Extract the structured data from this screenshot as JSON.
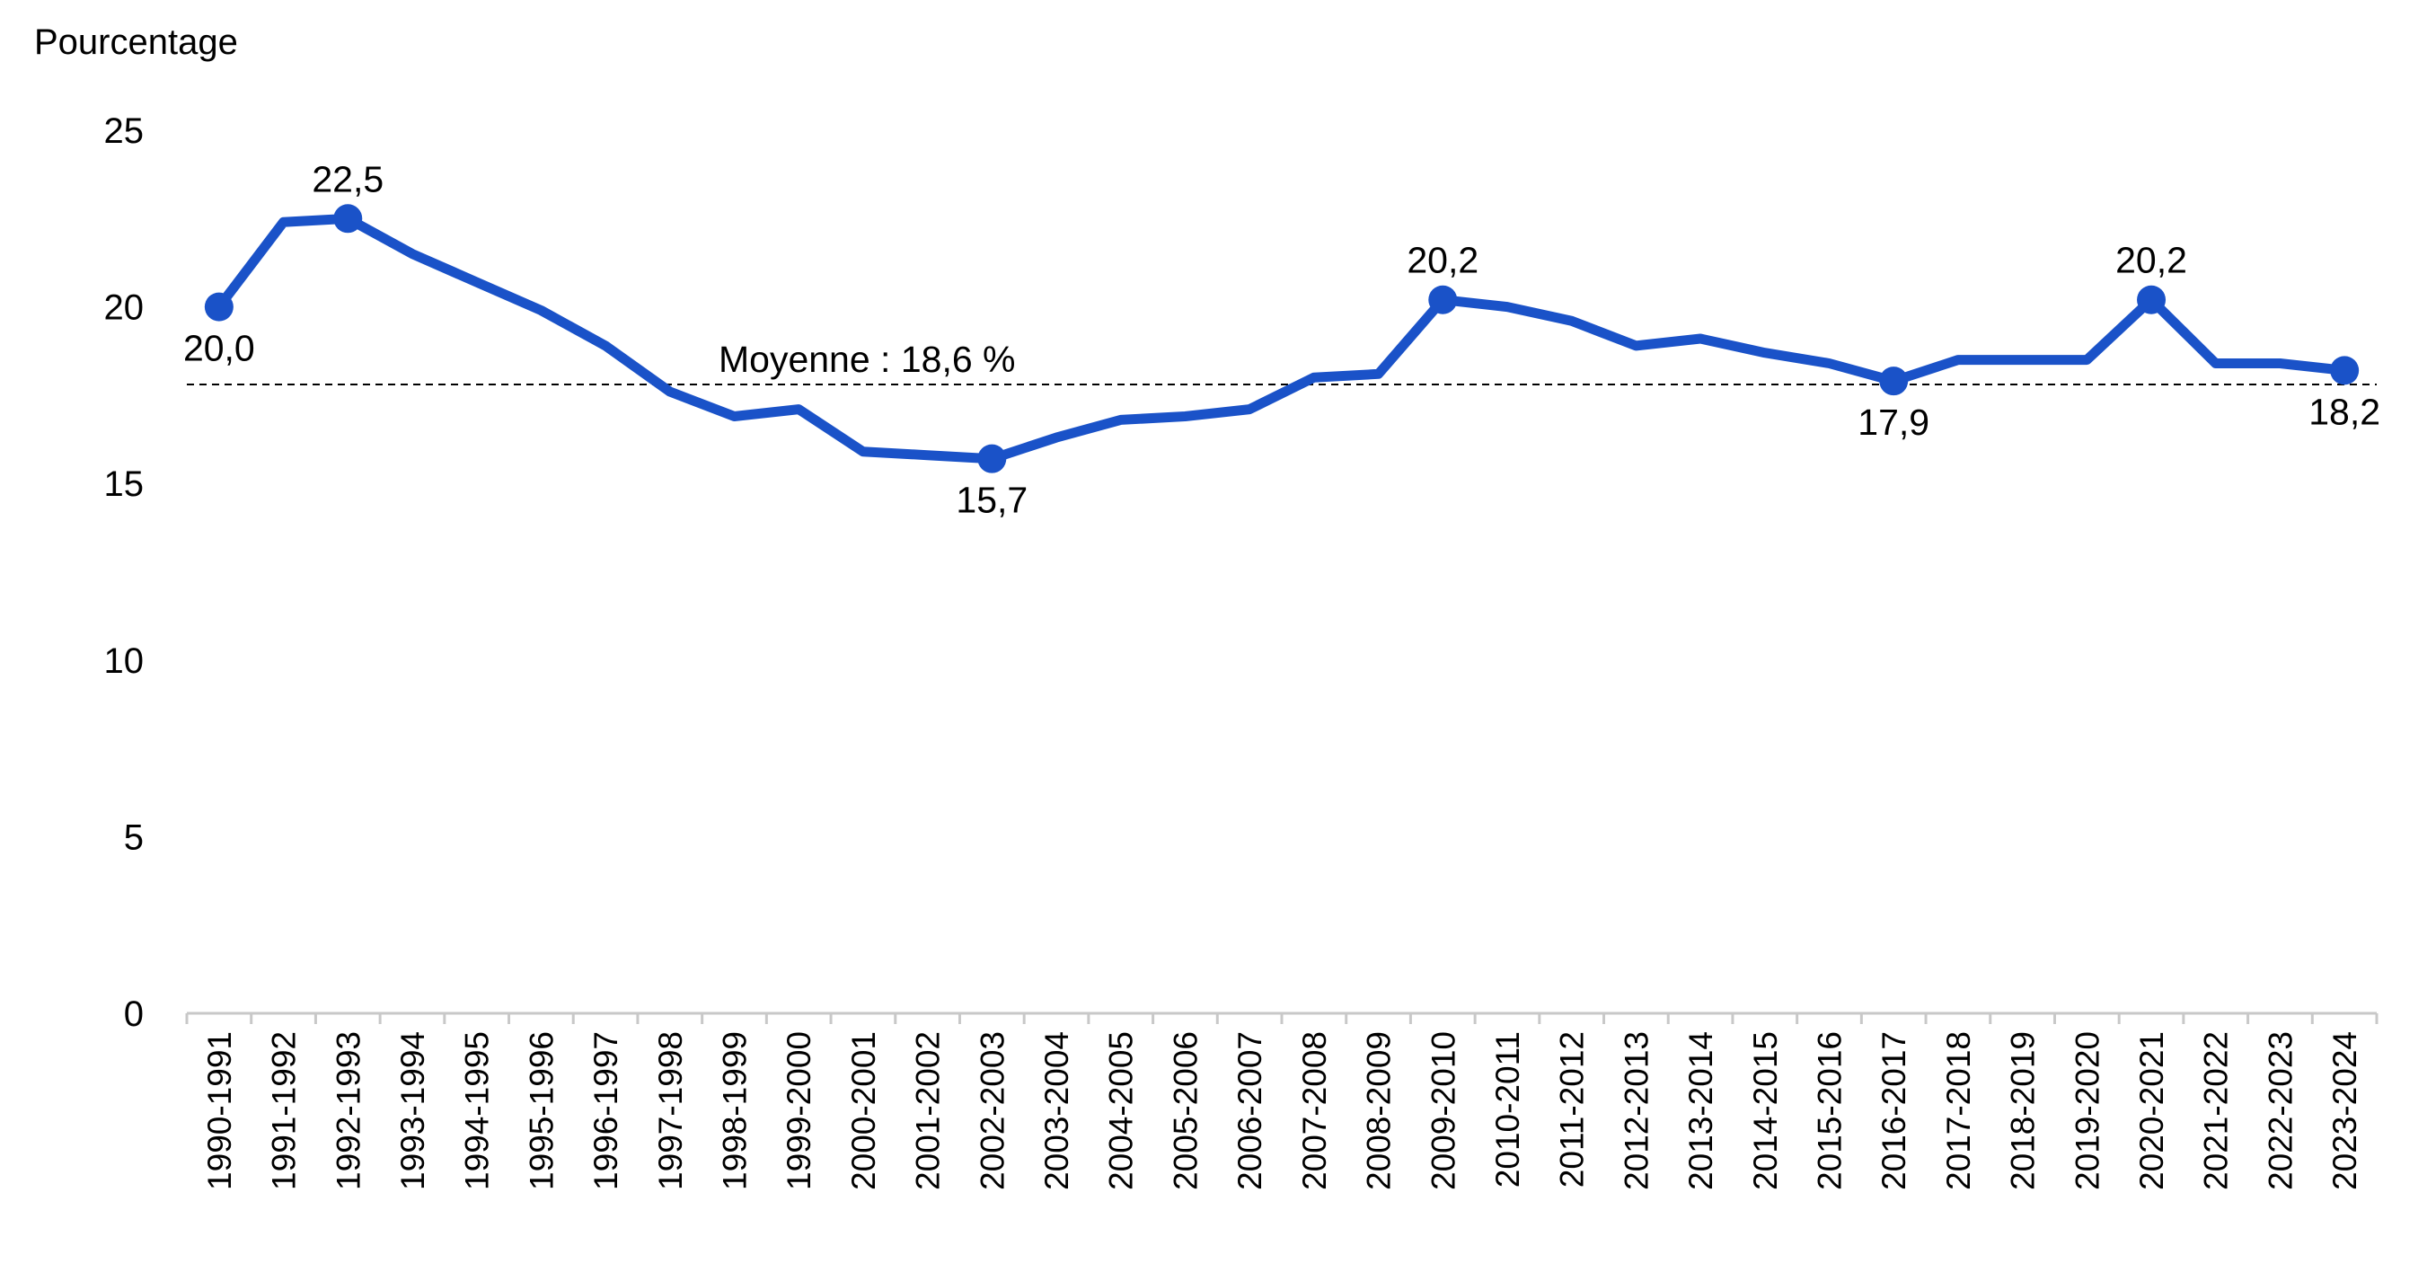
{
  "chart_data": {
    "type": "line",
    "ylabel": "Pourcentage",
    "ylim": [
      0,
      25
    ],
    "yticks": [
      "0",
      "5",
      "10",
      "15",
      "20",
      "25"
    ],
    "grid": false,
    "categories": [
      "1990-1991",
      "1991-1992",
      "1992-1993",
      "1993-1994",
      "1994-1995",
      "1995-1996",
      "1996-1997",
      "1997-1998",
      "1998-1999",
      "1999-2000",
      "2000-2001",
      "2001-2002",
      "2002-2003",
      "2003-2004",
      "2004-2005",
      "2005-2006",
      "2006-2007",
      "2007-2008",
      "2008-2009",
      "2009-2010",
      "2010-2011",
      "2011-2012",
      "2012-2013",
      "2013-2014",
      "2014-2015",
      "2015-2016",
      "2016-2017",
      "2017-2018",
      "2018-2019",
      "2019-2020",
      "2020-2021",
      "2021-2022",
      "2022-2023",
      "2023-2024"
    ],
    "series": [
      {
        "color": "#1a52c8",
        "values": [
          20.0,
          22.4,
          22.5,
          21.5,
          20.7,
          19.9,
          18.9,
          17.6,
          16.9,
          17.1,
          15.9,
          15.8,
          15.7,
          16.3,
          16.8,
          16.9,
          17.1,
          18.0,
          18.1,
          20.2,
          20.0,
          19.6,
          18.9,
          19.1,
          18.7,
          18.4,
          17.9,
          18.5,
          18.5,
          18.5,
          20.2,
          18.4,
          18.4,
          18.2
        ]
      }
    ],
    "average": {
      "value": 18.6,
      "label": "Moyenne : 18,6 %"
    },
    "annotations": [
      {
        "index": 0,
        "label": "20,0",
        "pos": "below"
      },
      {
        "index": 2,
        "label": "22,5",
        "pos": "above"
      },
      {
        "index": 12,
        "label": "15,7",
        "pos": "below"
      },
      {
        "index": 19,
        "label": "20,2",
        "pos": "above"
      },
      {
        "index": 26,
        "label": "17,9",
        "pos": "below"
      },
      {
        "index": 30,
        "label": "20,2",
        "pos": "above"
      },
      {
        "index": 33,
        "label": "18,2",
        "pos": "below"
      }
    ]
  }
}
